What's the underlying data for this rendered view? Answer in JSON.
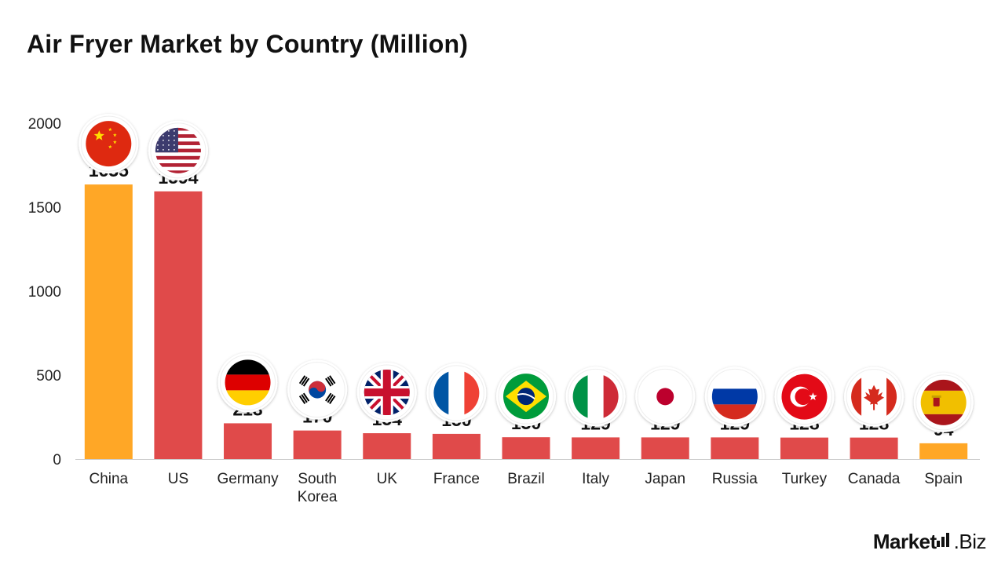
{
  "title": "Air Fryer Market by Country (Million)",
  "brand": {
    "name_bold": "Market",
    "name_rest": ".Biz"
  },
  "colors": {
    "highlight": "#FFA726",
    "default": "#E04A4A",
    "axis": "#cccccc"
  },
  "chart_data": {
    "type": "bar",
    "title": "Air Fryer Market by Country (Million)",
    "xlabel": "",
    "ylabel": "",
    "ylim": [
      0,
      2000
    ],
    "yticks": [
      0,
      500,
      1000,
      1500,
      2000
    ],
    "grid": false,
    "legend": "none",
    "categories": [
      "China",
      "US",
      "Germany",
      "South Korea",
      "UK",
      "France",
      "Brazil",
      "Italy",
      "Japan",
      "Russia",
      "Turkey",
      "Canada",
      "Spain"
    ],
    "values": [
      1635,
      1594,
      213,
      170,
      154,
      150,
      130,
      129,
      129,
      129,
      128,
      128,
      94
    ],
    "bar_colors": [
      "#FFA726",
      "#E04A4A",
      "#E04A4A",
      "#E04A4A",
      "#E04A4A",
      "#E04A4A",
      "#E04A4A",
      "#E04A4A",
      "#E04A4A",
      "#E04A4A",
      "#E04A4A",
      "#E04A4A",
      "#FFA726"
    ],
    "flags": [
      "china-flag-icon",
      "us-flag-icon",
      "germany-flag-icon",
      "south-korea-flag-icon",
      "uk-flag-icon",
      "france-flag-icon",
      "brazil-flag-icon",
      "italy-flag-icon",
      "japan-flag-icon",
      "russia-flag-icon",
      "turkey-flag-icon",
      "canada-flag-icon",
      "spain-flag-icon"
    ]
  }
}
